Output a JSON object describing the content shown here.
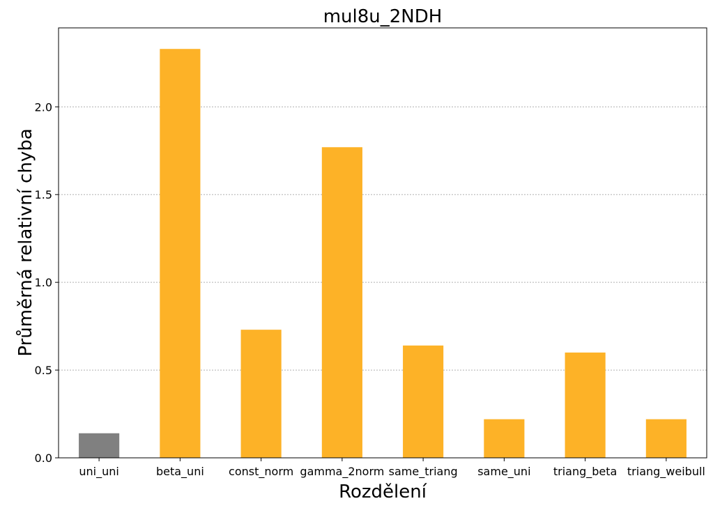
{
  "chart_data": {
    "type": "bar",
    "title": "mul8u_2NDH",
    "xlabel": "Rozdělení",
    "ylabel": "Průměrná relativní chyba",
    "categories": [
      "uni_uni",
      "beta_uni",
      "const_norm",
      "gamma_2norm",
      "same_triang",
      "same_uni",
      "triang_beta",
      "triang_weibull"
    ],
    "values": [
      0.14,
      2.33,
      0.73,
      1.77,
      0.64,
      0.22,
      0.6,
      0.22
    ],
    "colors": [
      "#808080",
      "#fdb227",
      "#fdb227",
      "#fdb227",
      "#fdb227",
      "#fdb227",
      "#fdb227",
      "#fdb227"
    ],
    "ylim": [
      0,
      2.45
    ],
    "yticks": [
      "0.0",
      "0.5",
      "1.0",
      "1.5",
      "2.0"
    ],
    "grid": "y-dotted"
  }
}
